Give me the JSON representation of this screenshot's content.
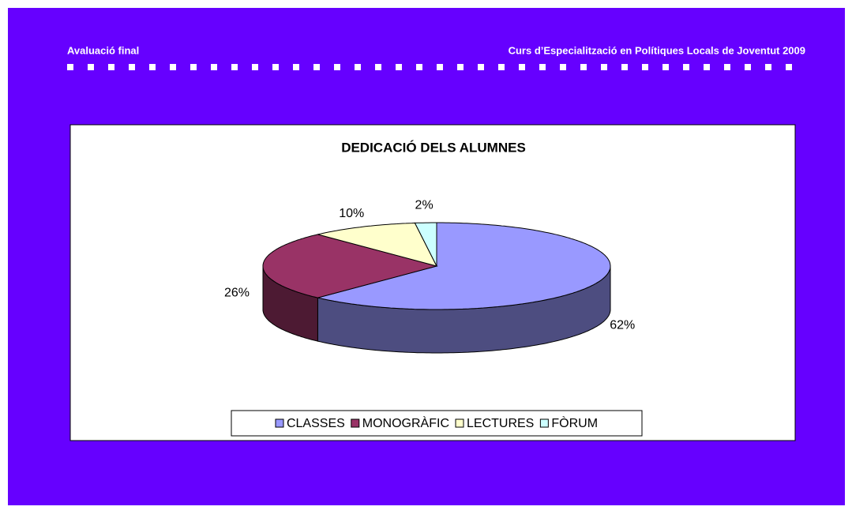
{
  "header": {
    "left": "Avaluació final",
    "right": "Curs d’Especialització en Polítiques Locals de Joventut 2009"
  },
  "chart_data": {
    "type": "pie",
    "title": "DEDICACIÓ DELS ALUMNES",
    "categories": [
      "CLASSES",
      "MONOGRÀFIC",
      "LECTURES",
      "FÒRUM"
    ],
    "values": [
      62,
      26,
      10,
      2
    ],
    "value_labels": [
      "62%",
      "26%",
      "10%",
      "2%"
    ],
    "colors": [
      "#9999ff",
      "#993366",
      "#ffffcc",
      "#ccffff"
    ],
    "legend": "bottom"
  }
}
